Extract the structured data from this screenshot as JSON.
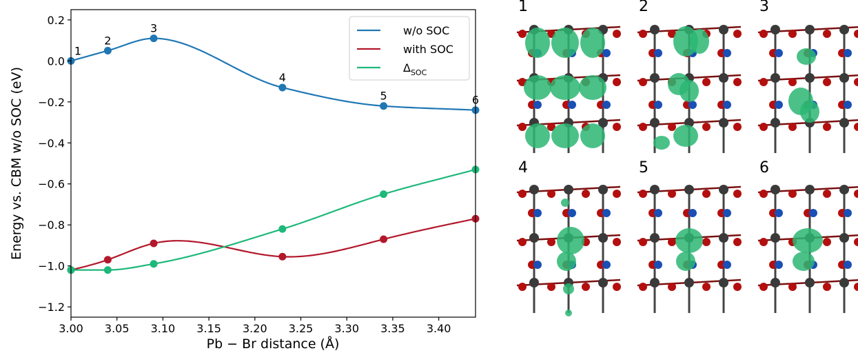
{
  "chart_data": {
    "type": "line",
    "xlabel": "Pb − Br distance (Å)",
    "ylabel": "Energy vs. CBM w/o SOC (eV)",
    "xlim": [
      3.0,
      3.44
    ],
    "ylim": [
      -1.25,
      0.25
    ],
    "xticks": [
      "3.00",
      "3.05",
      "3.10",
      "3.15",
      "3.20",
      "3.25",
      "3.30",
      "3.35",
      "3.40"
    ],
    "yticks": [
      "0.2",
      "0.0",
      "−0.2",
      "−0.4",
      "−0.6",
      "−0.8",
      "−1.0",
      "−1.2"
    ],
    "x": [
      3.0,
      3.04,
      3.09,
      3.23,
      3.34,
      3.44
    ],
    "point_labels": [
      "1",
      "2",
      "3",
      "4",
      "5",
      "6"
    ],
    "series": [
      {
        "name": "w/o SOC",
        "color": "#1f77b4",
        "values": [
          0.0,
          0.05,
          0.11,
          -0.13,
          -0.22,
          -0.24
        ]
      },
      {
        "name": "with SOC",
        "color": "#b2182b",
        "values": [
          -1.02,
          -0.97,
          -0.89,
          -0.955,
          -0.87,
          -0.77
        ]
      },
      {
        "name": "Δ",
        "subscript": "SOC",
        "color": "#1db87a",
        "values": [
          -1.02,
          -1.02,
          -0.99,
          -0.82,
          -0.65,
          -0.53
        ]
      }
    ],
    "legend_position": "top-right",
    "grid": false
  },
  "panels": {
    "labels": [
      "1",
      "2",
      "3",
      "4",
      "5",
      "6"
    ],
    "description_colors": {
      "isosurface": "#2bb673",
      "lead": "#3a3a3a",
      "bromine": "#b30f0f",
      "nitrogen": "#1a4fb5"
    }
  }
}
